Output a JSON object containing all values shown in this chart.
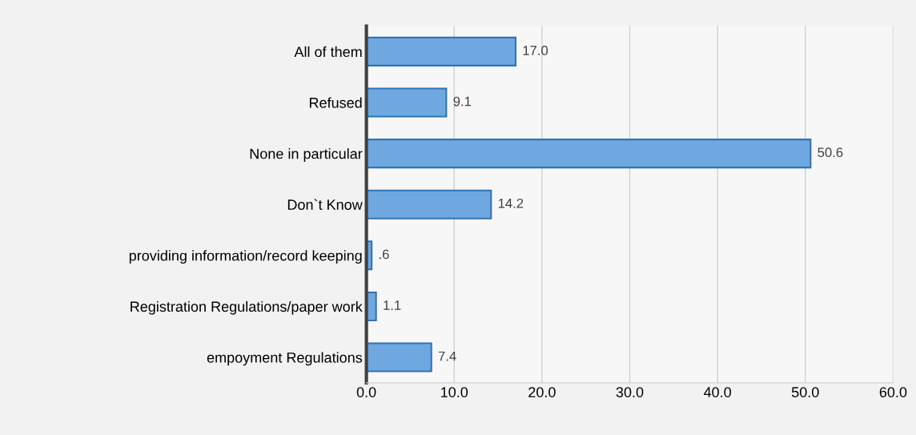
{
  "chart_data": {
    "type": "bar",
    "orientation": "horizontal",
    "categories": [
      "All of them",
      "Refused",
      "None in particular",
      "Don`t Know",
      "providing information/record keeping",
      "Registration Regulations/paper work",
      "empoyment Regulations"
    ],
    "values": [
      17.0,
      9.1,
      50.6,
      14.2,
      0.6,
      1.1,
      7.4
    ],
    "value_labels": [
      "17.0",
      "9.1",
      "50.6",
      "14.2",
      ".6",
      "1.1",
      "7.4"
    ],
    "color": "#6fa8e0",
    "xlim": [
      0,
      60
    ],
    "xticks": [
      {
        "value": 0,
        "label": "0.0"
      },
      {
        "value": 10,
        "label": "10.0"
      },
      {
        "value": 20,
        "label": "20.0"
      },
      {
        "value": 30,
        "label": "30.0"
      },
      {
        "value": 40,
        "label": "40.0"
      },
      {
        "value": 50,
        "label": "50.0"
      },
      {
        "value": 60,
        "label": "60.0"
      }
    ],
    "grid": "x",
    "legend": false
  }
}
